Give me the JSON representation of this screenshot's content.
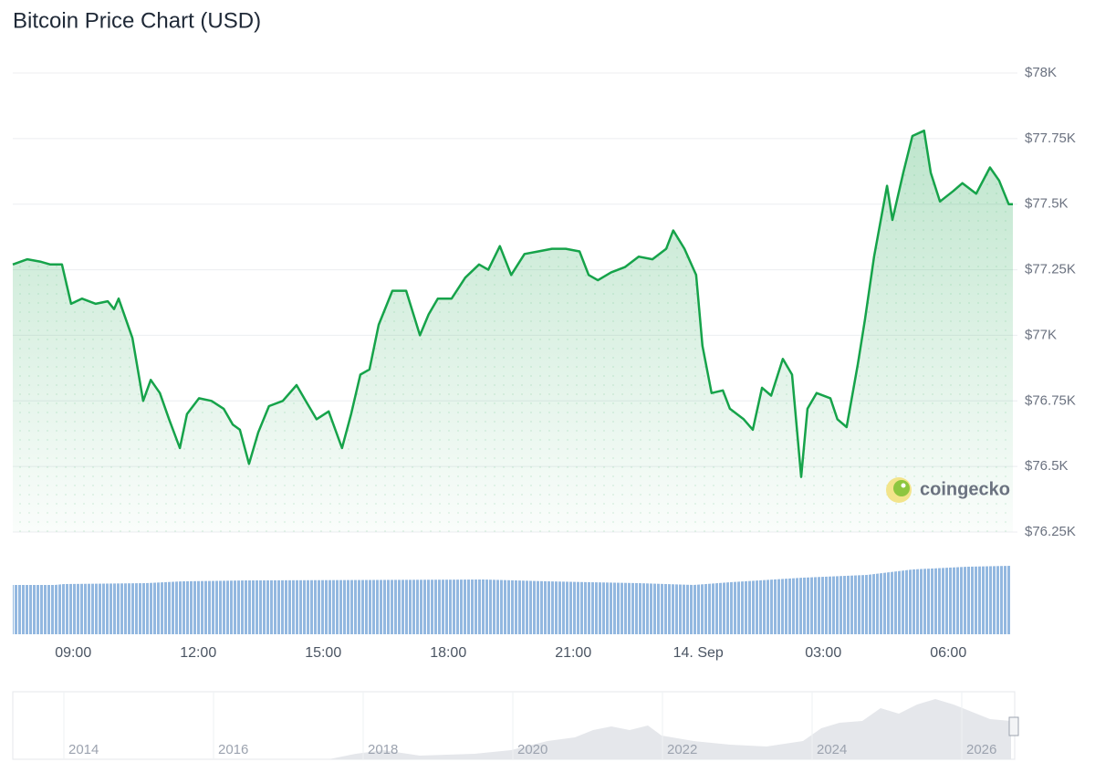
{
  "chart_data": {
    "type": "line",
    "title": "Bitcoin Price Chart (USD)",
    "color": "#16a34a",
    "grid": true,
    "watermark": "coingecko",
    "xlim": [
      7.55,
      31.55
    ],
    "xticks": [
      {
        "value": 9,
        "label": "09:00"
      },
      {
        "value": 12,
        "label": "12:00"
      },
      {
        "value": 15,
        "label": "15:00"
      },
      {
        "value": 18,
        "label": "18:00"
      },
      {
        "value": 21,
        "label": "21:00"
      },
      {
        "value": 24,
        "label": "14. Sep"
      },
      {
        "value": 27,
        "label": "03:00"
      },
      {
        "value": 30,
        "label": "06:00"
      }
    ],
    "ylim": [
      76250,
      78000
    ],
    "yticks": [
      {
        "value": 76250,
        "label": "$76.25K"
      },
      {
        "value": 76500,
        "label": "$76.5K"
      },
      {
        "value": 76750,
        "label": "$76.75K"
      },
      {
        "value": 77000,
        "label": "$77K"
      },
      {
        "value": 77250,
        "label": "$77.25K"
      },
      {
        "value": 77500,
        "label": "$77.5K"
      },
      {
        "value": 77750,
        "label": "$77.75K"
      },
      {
        "value": 78000,
        "label": "$78K"
      }
    ],
    "x": [
      7.55,
      7.9,
      8.23,
      8.45,
      8.73,
      8.95,
      9.21,
      9.54,
      9.83,
      9.98,
      10.09,
      10.42,
      10.68,
      10.86,
      11.08,
      11.3,
      11.56,
      11.73,
      12.02,
      12.32,
      12.61,
      12.83,
      13.0,
      13.22,
      13.44,
      13.7,
      14.03,
      14.36,
      14.58,
      14.84,
      15.13,
      15.45,
      15.67,
      15.89,
      16.11,
      16.33,
      16.66,
      16.99,
      17.32,
      17.53,
      17.75,
      18.08,
      18.41,
      18.74,
      18.96,
      19.24,
      19.51,
      19.83,
      20.16,
      20.49,
      20.82,
      21.15,
      21.37,
      21.59,
      21.91,
      22.24,
      22.57,
      22.9,
      23.23,
      23.4,
      23.67,
      23.95,
      24.1,
      24.32,
      24.59,
      24.76,
      25.09,
      25.31,
      25.53,
      25.75,
      26.03,
      26.25,
      26.47,
      26.62,
      26.84,
      27.17,
      27.34,
      27.56,
      27.83,
      28.0,
      28.22,
      28.53,
      28.66,
      28.92,
      29.14,
      29.42,
      29.58,
      29.8,
      30.12,
      30.34,
      30.67,
      31.0,
      31.22,
      31.45,
      31.55
    ],
    "values": [
      77270,
      77290,
      77280,
      77270,
      77270,
      77120,
      77140,
      77120,
      77130,
      77100,
      77140,
      76990,
      76750,
      76830,
      76780,
      76680,
      76570,
      76700,
      76760,
      76750,
      76720,
      76660,
      76640,
      76510,
      76630,
      76730,
      76750,
      76810,
      76750,
      76680,
      76710,
      76570,
      76700,
      76850,
      76870,
      77040,
      77170,
      77170,
      77000,
      77080,
      77140,
      77140,
      77220,
      77270,
      77250,
      77340,
      77230,
      77310,
      77320,
      77330,
      77330,
      77320,
      77230,
      77210,
      77240,
      77260,
      77300,
      77290,
      77330,
      77400,
      77330,
      77230,
      76960,
      76780,
      76790,
      76720,
      76680,
      76640,
      76800,
      76770,
      76910,
      76850,
      76460,
      76720,
      76780,
      76760,
      76680,
      76650,
      76890,
      77060,
      77300,
      77570,
      77440,
      77620,
      77760,
      77780,
      77620,
      77510,
      77550,
      77580,
      77540,
      77640,
      77590,
      77500,
      77500
    ]
  },
  "navigator": {
    "labels": [
      "2014",
      "2016",
      "2018",
      "2020",
      "2022",
      "2024",
      "2026"
    ]
  }
}
